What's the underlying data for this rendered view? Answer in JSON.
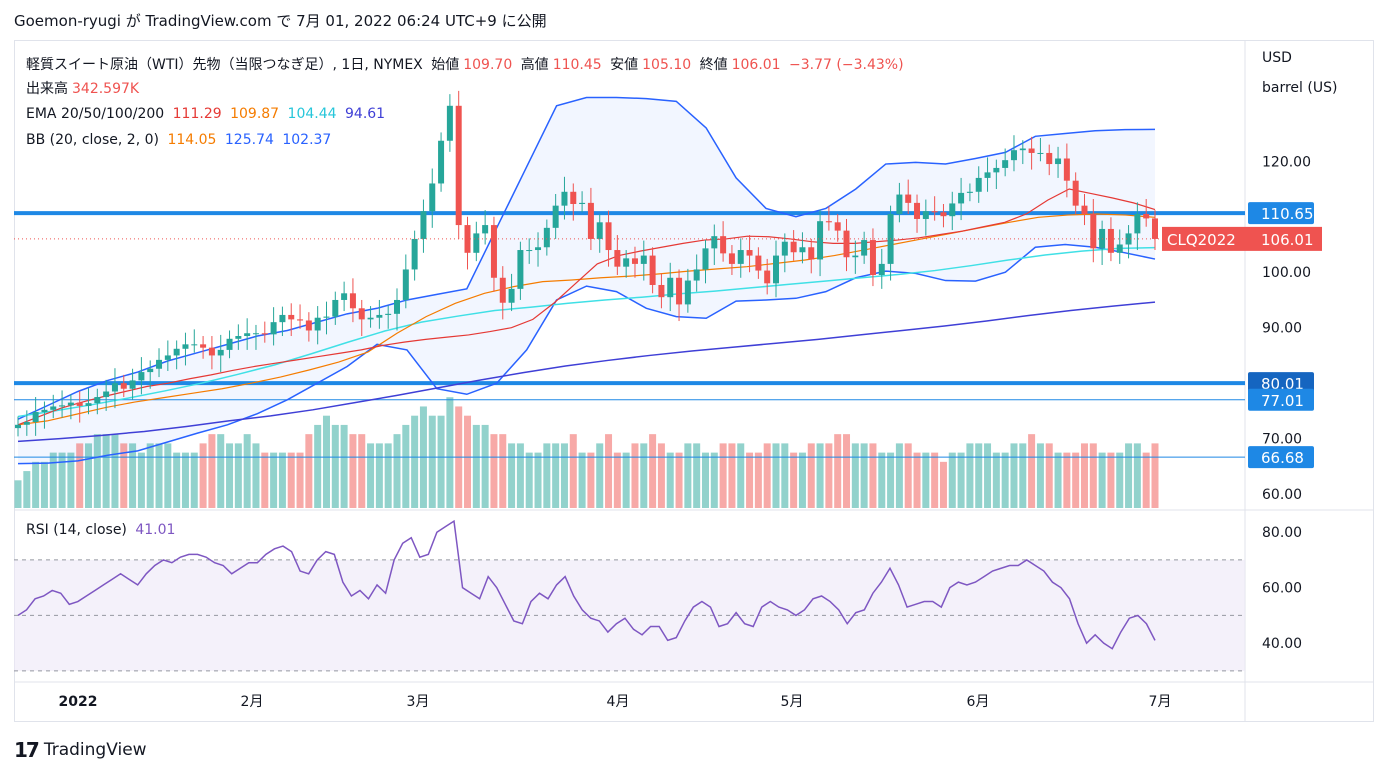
{
  "header": {
    "text": "Goemon-ryugi が TradingView.com で 7月 01, 2022 06:24 UTC+9 に公開"
  },
  "legend": {
    "title": "軽質スイート原油（WTI）先物（当限つなぎ足）, 1日, NYMEX",
    "open_label": "始値",
    "open": "109.70",
    "high_label": "高値",
    "high": "110.45",
    "low_label": "安値",
    "low": "105.10",
    "close_label": "終値",
    "close": "106.01",
    "change": "−3.77 (−3.43%)",
    "volume_label": "出来高",
    "volume": "342.597K",
    "ema_label": "EMA 20/50/100/200",
    "ema20": "111.29",
    "ema50": "109.87",
    "ema100": "104.44",
    "ema200": "94.61",
    "bb_label": "BB (20, close, 2, 0)",
    "bb_basis": "114.05",
    "bb_upper": "125.74",
    "bb_lower": "102.37",
    "rsi_label": "RSI (14, close)",
    "rsi_value": "41.01"
  },
  "axis": {
    "unit_line1": "USD",
    "unit_line2": "barrel (US)",
    "price_ticks": [
      "120.00",
      "100.00",
      "90.00",
      "70.00",
      "60.00"
    ],
    "rsi_ticks": [
      "80.00",
      "60.00",
      "40.00"
    ],
    "x_ticks": [
      "2022",
      "2月",
      "3月",
      "4月",
      "5月",
      "6月",
      "7月"
    ]
  },
  "price_tags": {
    "line1": "110.65",
    "symbol": "CLQ2022",
    "last": "106.01",
    "line2": "80.01",
    "line3": "77.01",
    "line4": "66.68"
  },
  "colors": {
    "up": "#26a69a",
    "down": "#ef5350",
    "ema20": "#e53935",
    "ema50": "#f57c00",
    "ema100": "#40e0e6",
    "ema200": "#3f3fd6",
    "bb": "#2962ff",
    "rsi": "#7e57c2",
    "hline": "#1e88e5"
  },
  "chart_data": {
    "type": "candlestick",
    "price_range": [
      57.5,
      141.5
    ],
    "horizontal_lines": [
      110.65,
      80.01,
      77.01,
      66.68
    ],
    "closes": [
      72.5,
      73.0,
      74.8,
      75.2,
      75.8,
      76.0,
      76.5,
      75.9,
      76.4,
      77.5,
      78.5,
      80.0,
      79.0,
      80.5,
      82.0,
      82.6,
      84.2,
      85.0,
      86.2,
      87.0,
      87.0,
      86.4,
      85.0,
      86.0,
      88.0,
      88.5,
      89.0,
      89.0,
      88.8,
      91.0,
      92.3,
      91.5,
      91.3,
      89.5,
      91.8,
      92.0,
      95.0,
      96.2,
      93.5,
      91.5,
      91.8,
      92.3,
      92.5,
      95.0,
      100.5,
      106.0,
      111.0,
      116.0,
      123.7,
      130.0,
      108.5,
      103.5,
      107.0,
      108.5,
      99.0,
      94.5,
      97.0,
      104.0,
      104.0,
      104.5,
      108.0,
      112.0,
      114.5,
      112.3,
      112.5,
      106.0,
      109.0,
      104.0,
      101.0,
      102.5,
      101.5,
      103.0,
      97.7,
      95.5,
      99.0,
      94.2,
      98.5,
      100.5,
      104.3,
      106.5,
      103.4,
      101.5,
      104.0,
      103.0,
      100.3,
      98.0,
      103.0,
      105.5,
      103.6,
      104.5,
      102.3,
      109.2,
      109.0,
      107.5,
      102.7,
      103.0,
      105.8,
      99.5,
      101.5,
      110.5,
      114.0,
      112.5,
      109.6,
      111.0,
      110.8,
      110.1,
      112.4,
      114.3,
      114.5,
      117.0,
      118.0,
      118.8,
      120.2,
      122.0,
      122.3,
      121.5,
      121.5,
      119.5,
      120.5,
      116.5,
      112.0,
      110.5,
      104.3,
      107.8,
      103.5,
      105.0,
      107.0,
      110.5,
      109.7,
      106.0
    ],
    "ema20": [
      72.5,
      74.0,
      75.5,
      76.6,
      77.6,
      78.5,
      79.4,
      80.0,
      80.8,
      81.5,
      82.3,
      83.0,
      83.6,
      84.2,
      84.8,
      85.4,
      86.0,
      86.8,
      87.4,
      87.9,
      88.3,
      88.7,
      89.3,
      90.0,
      91.5,
      94.5,
      98.0,
      101.5,
      103.0,
      103.8,
      104.5,
      105.2,
      105.8,
      106.0,
      106.5,
      106.4,
      106.0,
      105.5,
      105.2,
      105.2,
      105.5,
      105.8,
      106.2,
      106.8,
      107.4,
      108.2,
      109.0,
      110.5,
      113.0,
      115.0,
      114.2,
      113.4,
      112.5,
      111.3
    ],
    "ema50": [
      72.5,
      73.2,
      74.4,
      75.6,
      76.6,
      77.4,
      78.2,
      79.0,
      80.0,
      81.1,
      82.4,
      83.8,
      85.6,
      89.0,
      92.0,
      94.4,
      96.2,
      97.4,
      98.3,
      98.6,
      99.0,
      99.3,
      99.7,
      100.2,
      100.6,
      101.0,
      101.6,
      102.2,
      103.0,
      104.0,
      105.0,
      106.0,
      107.0,
      108.0,
      109.0,
      109.9,
      110.3,
      110.5,
      110.3,
      109.9
    ],
    "ema100": [
      74.0,
      75.0,
      76.1,
      77.3,
      78.6,
      80.0,
      81.6,
      83.3,
      85.3,
      87.4,
      89.4,
      91.0,
      92.1,
      93.1,
      93.7,
      94.4,
      95.0,
      95.5,
      96.1,
      96.6,
      97.2,
      97.8,
      98.4,
      99.0,
      99.6,
      100.3,
      101.2,
      102.2,
      103.1,
      103.8,
      104.3,
      104.44
    ],
    "ema200": [
      69.5,
      70.0,
      70.6,
      71.3,
      72.2,
      73.2,
      74.1,
      75.2,
      76.5,
      77.8,
      79.2,
      80.6,
      81.9,
      83.1,
      84.1,
      85.0,
      85.8,
      86.5,
      87.2,
      87.9,
      88.7,
      89.5,
      90.3,
      91.2,
      92.2,
      93.1,
      93.9,
      94.61
    ],
    "bb_upper": [
      73.5,
      76.0,
      78.5,
      80.5,
      82.0,
      84.0,
      85.5,
      87.0,
      88.5,
      89.5,
      91.0,
      92.5,
      93.5,
      95.0,
      96.0,
      97.0,
      108.0,
      119.0,
      130.0,
      131.5,
      131.5,
      131.3,
      130.8,
      126.0,
      117.0,
      111.5,
      110.0,
      111.5,
      115.0,
      119.5,
      119.8,
      119.5,
      120.5,
      121.6,
      124.5,
      125.0,
      125.5,
      125.7,
      125.74
    ],
    "bb_lower": [
      65.5,
      65.6,
      66.0,
      67.0,
      67.8,
      69.4,
      71.0,
      72.5,
      74.5,
      77.0,
      80.0,
      83.0,
      87.0,
      86.0,
      79.0,
      78.0,
      80.0,
      86.0,
      95.0,
      97.5,
      96.5,
      93.5,
      92.0,
      91.7,
      94.8,
      95.0,
      95.3,
      96.5,
      99.0,
      100.2,
      99.8,
      98.5,
      98.4,
      100.0,
      104.5,
      105.0,
      104.5,
      103.5,
      102.37
    ],
    "volume": [
      3,
      4,
      5,
      5,
      6,
      6,
      6,
      7,
      7,
      8,
      8,
      8,
      7,
      7,
      6,
      7,
      7,
      7,
      6,
      6,
      6,
      7,
      8,
      8,
      7,
      7,
      8,
      7,
      6,
      6,
      6,
      6,
      6,
      8,
      9,
      10,
      9,
      9,
      8,
      8,
      7,
      7,
      7,
      8,
      9,
      10,
      11,
      10,
      10,
      12,
      11,
      10,
      9,
      9,
      8,
      8,
      7,
      7,
      6,
      6,
      7,
      7,
      7,
      8,
      6,
      6,
      7,
      8,
      6,
      6,
      7,
      7,
      8,
      7,
      6,
      6,
      7,
      7,
      6,
      6,
      7,
      7,
      7,
      6,
      6,
      7,
      7,
      7,
      6,
      6,
      7,
      7,
      7,
      8,
      8,
      7,
      7,
      7,
      6,
      6,
      7,
      7,
      6,
      6,
      6,
      5,
      6,
      6,
      7,
      7,
      7,
      6,
      6,
      7,
      7,
      8,
      7,
      7,
      6,
      6,
      6,
      7,
      7,
      6,
      6,
      6,
      7,
      7,
      6,
      7
    ],
    "rsi_range": [
      26,
      88
    ],
    "rsi": [
      50,
      52,
      56,
      57,
      59,
      58,
      54,
      55,
      57,
      59,
      61,
      63,
      65,
      63,
      61,
      65,
      68,
      70,
      69,
      71,
      72,
      72,
      71,
      69,
      68,
      65,
      67,
      69,
      69,
      72,
      74,
      75,
      73,
      66,
      65,
      70,
      73,
      72,
      62,
      57,
      59,
      56,
      61,
      58,
      70,
      76,
      78,
      71,
      72,
      80,
      82,
      84,
      60,
      58,
      56,
      64,
      60,
      54,
      48,
      47,
      55,
      58,
      56,
      61,
      64,
      57,
      52,
      49,
      48,
      44,
      47,
      49,
      45,
      43,
      46,
      46,
      41,
      42,
      48,
      53,
      55,
      53,
      46,
      47,
      51,
      47,
      46,
      53,
      55,
      53,
      52,
      50,
      52,
      56,
      57,
      55,
      52,
      47,
      51,
      52,
      58,
      62,
      67,
      61,
      53,
      54,
      55,
      55,
      53,
      60,
      62,
      61,
      62,
      64,
      66,
      67,
      68,
      68,
      70,
      68,
      66,
      62,
      60,
      56,
      47,
      40,
      43,
      40,
      38,
      44,
      49,
      50,
      47,
      41
    ]
  }
}
